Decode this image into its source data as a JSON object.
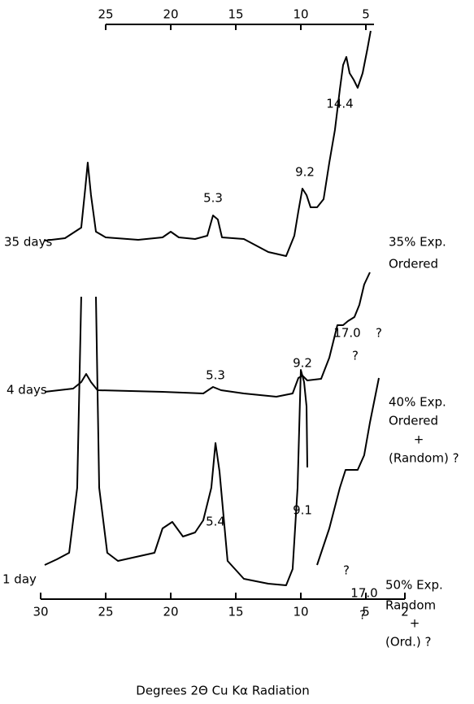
{
  "chart_data": {
    "type": "line",
    "xlabel": "Degrees 2Θ Cu Kα Radiation",
    "xlim": [
      30,
      2
    ],
    "xticks": [
      30,
      25,
      20,
      15,
      10,
      5,
      2
    ],
    "x2lim": [
      25,
      5
    ],
    "x2ticks": [
      25,
      20,
      15,
      10,
      5
    ],
    "ylim": [
      0,
      730
    ],
    "color": "#000000",
    "series": [
      {
        "name": "35 days",
        "x": [
          29.69,
          28.13,
          26.88,
          26.56,
          26.38,
          26.13,
          25.75,
          25.0,
          22.5,
          20.63,
          20.0,
          19.38,
          18.13,
          17.19,
          16.75,
          16.38,
          16.06,
          14.38,
          12.5,
          11.13,
          10.5,
          10.19,
          9.88,
          9.56,
          9.25,
          8.75,
          8.25,
          7.81,
          7.38,
          7.0,
          6.75,
          6.5,
          6.25,
          5.94,
          5.63,
          5.25,
          4.88,
          4.63
        ],
        "values": [
          444,
          447,
          460,
          510,
          540,
          500,
          455,
          448,
          445,
          448,
          455,
          448,
          446,
          450,
          475,
          470,
          448,
          446,
          430,
          425,
          450,
          480,
          508,
          500,
          485,
          485,
          495,
          540,
          580,
          630,
          660,
          670,
          650,
          642,
          632,
          650,
          680,
          702
        ],
        "annotations": [
          "14.4",
          "9.2",
          "5.3"
        ],
        "description": [
          "35% Exp.",
          "Ordered"
        ]
      },
      {
        "name": "4 days",
        "x": [
          29.69,
          27.5,
          26.88,
          26.5,
          26.13,
          25.63,
          20.63,
          17.5,
          16.75,
          16.13,
          14.38,
          11.88,
          10.63,
          10.19,
          9.88,
          9.5,
          8.44,
          7.81,
          7.19,
          6.75,
          6.38,
          5.88,
          5.5,
          5.13,
          4.69
        ],
        "values": [
          258,
          262,
          270,
          280,
          270,
          260,
          258,
          256,
          264,
          260,
          256,
          252,
          256,
          275,
          278,
          272,
          274,
          300,
          340,
          340,
          345,
          350,
          365,
          390,
          405
        ],
        "annotations": [
          "17.0",
          "?",
          "?",
          "9.2",
          "5.3"
        ],
        "description": [
          "40% Exp.",
          "Ordered",
          "+",
          "(Random) ?"
        ]
      },
      {
        "name": "1 day",
        "x": [
          29.69,
          28.75,
          27.81,
          27.19,
          26.88,
          null,
          25.75,
          25.5,
          24.88,
          24.06,
          21.25,
          20.63,
          19.88,
          19.06,
          18.13,
          17.5,
          16.88,
          16.56,
          16.25,
          15.63,
          14.38,
          12.5,
          11.13,
          10.63,
          10.25,
          10.0,
          9.75,
          9.56,
          9.5,
          null,
          8.75,
          7.81,
          7.0,
          6.56,
          5.63,
          5.13,
          4.69,
          4.0
        ],
        "values": [
          45,
          52,
          60,
          140,
          375,
          null,
          375,
          140,
          60,
          50,
          60,
          90,
          98,
          80,
          85,
          100,
          140,
          195,
          160,
          50,
          28,
          22,
          20,
          40,
          140,
          285,
          270,
          240,
          165,
          null,
          45,
          90,
          140,
          162,
          162,
          180,
          220,
          275
        ],
        "annotations": [
          "9.1",
          "5.4",
          "?",
          "17.0",
          "?"
        ],
        "description": [
          "50% Exp.",
          "Random",
          "+",
          "(Ord.) ?"
        ]
      }
    ]
  }
}
